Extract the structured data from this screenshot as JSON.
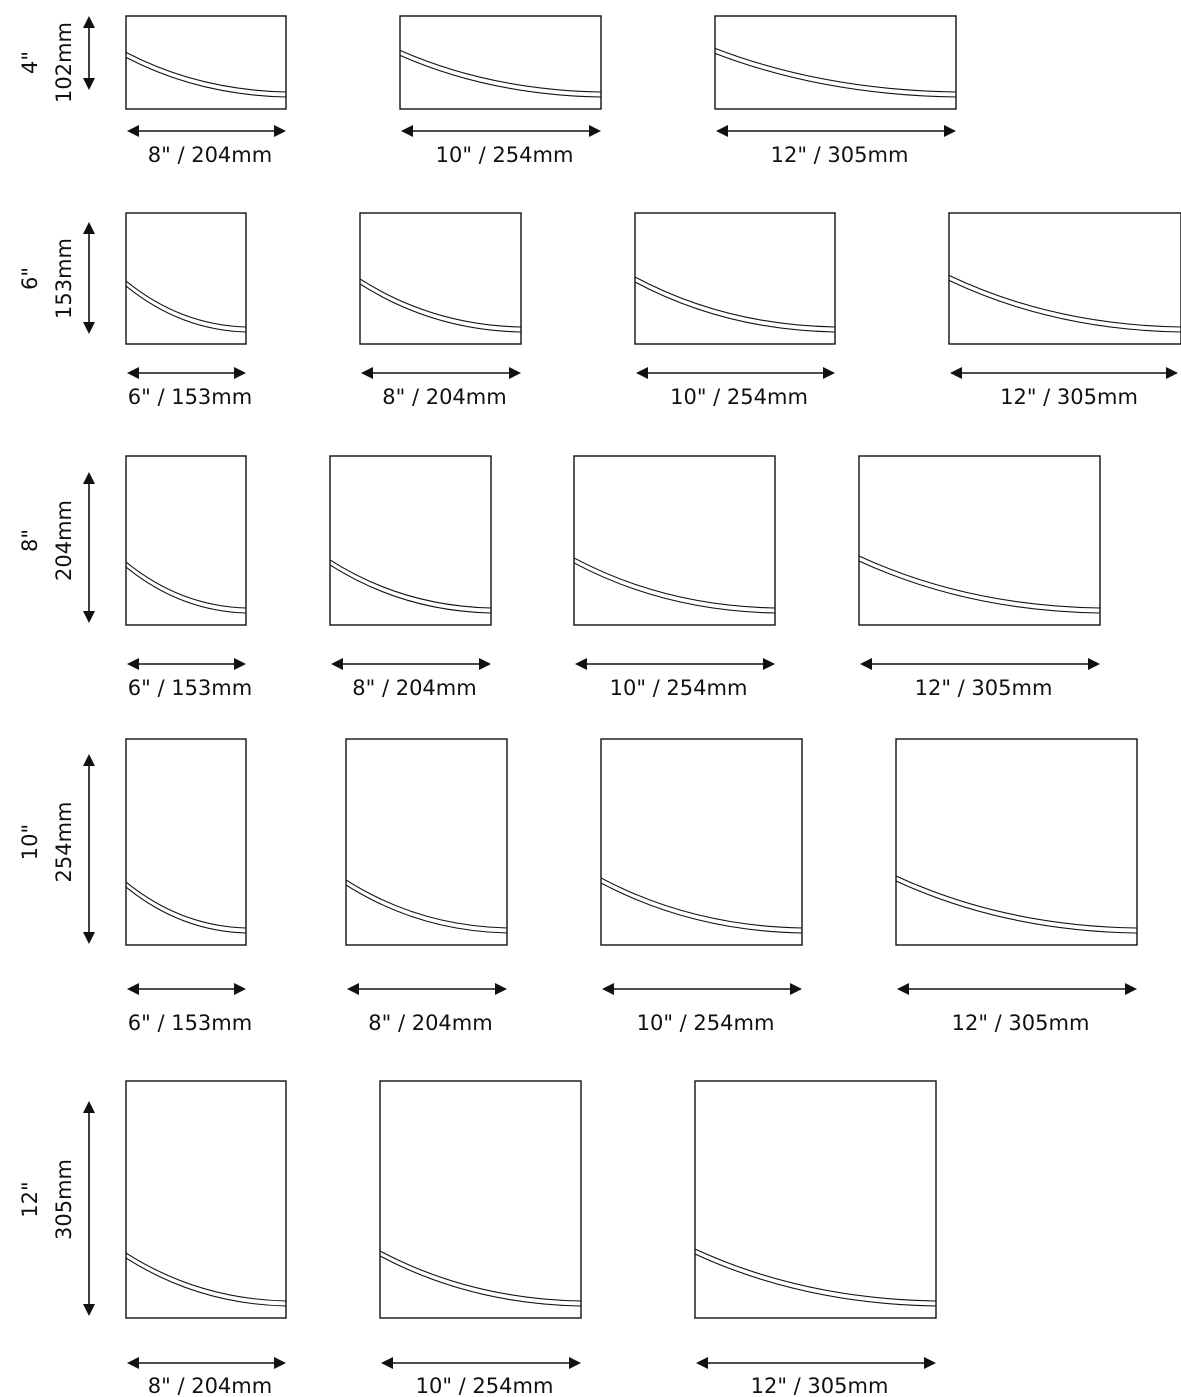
{
  "diagram": {
    "rows": [
      {
        "height_label": {
          "inch": "4\"",
          "mm": "102mm"
        },
        "panels": [
          {
            "width_label": "8\" / 204mm"
          },
          {
            "width_label": "10\" / 254mm"
          },
          {
            "width_label": "12\" / 305mm"
          }
        ]
      },
      {
        "height_label": {
          "inch": "6\"",
          "mm": "153mm"
        },
        "panels": [
          {
            "width_label": "6\" / 153mm"
          },
          {
            "width_label": "8\" / 204mm"
          },
          {
            "width_label": "10\" / 254mm"
          },
          {
            "width_label": "12\" / 305mm"
          }
        ]
      },
      {
        "height_label": {
          "inch": "8\"",
          "mm": "204mm"
        },
        "panels": [
          {
            "width_label": "6\" / 153mm"
          },
          {
            "width_label": "8\" / 204mm"
          },
          {
            "width_label": "10\" / 254mm"
          },
          {
            "width_label": "12\" / 305mm"
          }
        ]
      },
      {
        "height_label": {
          "inch": "10\"",
          "mm": "254mm"
        },
        "panels": [
          {
            "width_label": "6\" / 153mm"
          },
          {
            "width_label": "8\" / 204mm"
          },
          {
            "width_label": "10\" / 254mm"
          },
          {
            "width_label": "12\" / 305mm"
          }
        ]
      },
      {
        "height_label": {
          "inch": "12\"",
          "mm": "305mm"
        },
        "panels": [
          {
            "width_label": "8\" / 204mm"
          },
          {
            "width_label": "10\" / 254mm"
          },
          {
            "width_label": "12\" / 305mm"
          }
        ]
      }
    ]
  }
}
